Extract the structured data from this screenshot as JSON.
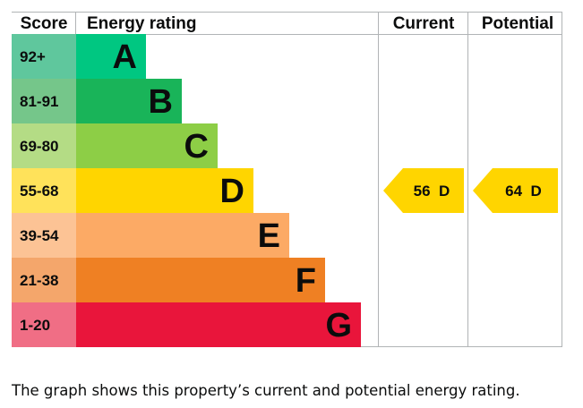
{
  "header": {
    "score": "Score",
    "energy_rating": "Energy rating",
    "current": "Current",
    "potential": "Potential"
  },
  "chart_data": {
    "type": "bar",
    "bands": [
      {
        "letter": "A",
        "range": "92+",
        "color": "#00c781",
        "score_color": "#5fc79d"
      },
      {
        "letter": "B",
        "range": "81-91",
        "color": "#19b459",
        "score_color": "#75c68a"
      },
      {
        "letter": "C",
        "range": "69-80",
        "color": "#8dce46",
        "score_color": "#b4dc85"
      },
      {
        "letter": "D",
        "range": "55-68",
        "color": "#ffd500",
        "score_color": "#ffe25a"
      },
      {
        "letter": "E",
        "range": "39-54",
        "color": "#fcaa65",
        "score_color": "#fcc395"
      },
      {
        "letter": "F",
        "range": "21-38",
        "color": "#ef8023",
        "score_color": "#f4a66b"
      },
      {
        "letter": "G",
        "range": "1-20",
        "color": "#e9153b",
        "score_color": "#f06e85"
      }
    ],
    "current": {
      "value": 56,
      "band": "D",
      "label": "56  D",
      "color": "#ffd500"
    },
    "potential": {
      "value": 64,
      "band": "D",
      "label": "64  D",
      "color": "#ffd500"
    }
  },
  "caption": "The graph shows this property’s current and potential energy rating."
}
